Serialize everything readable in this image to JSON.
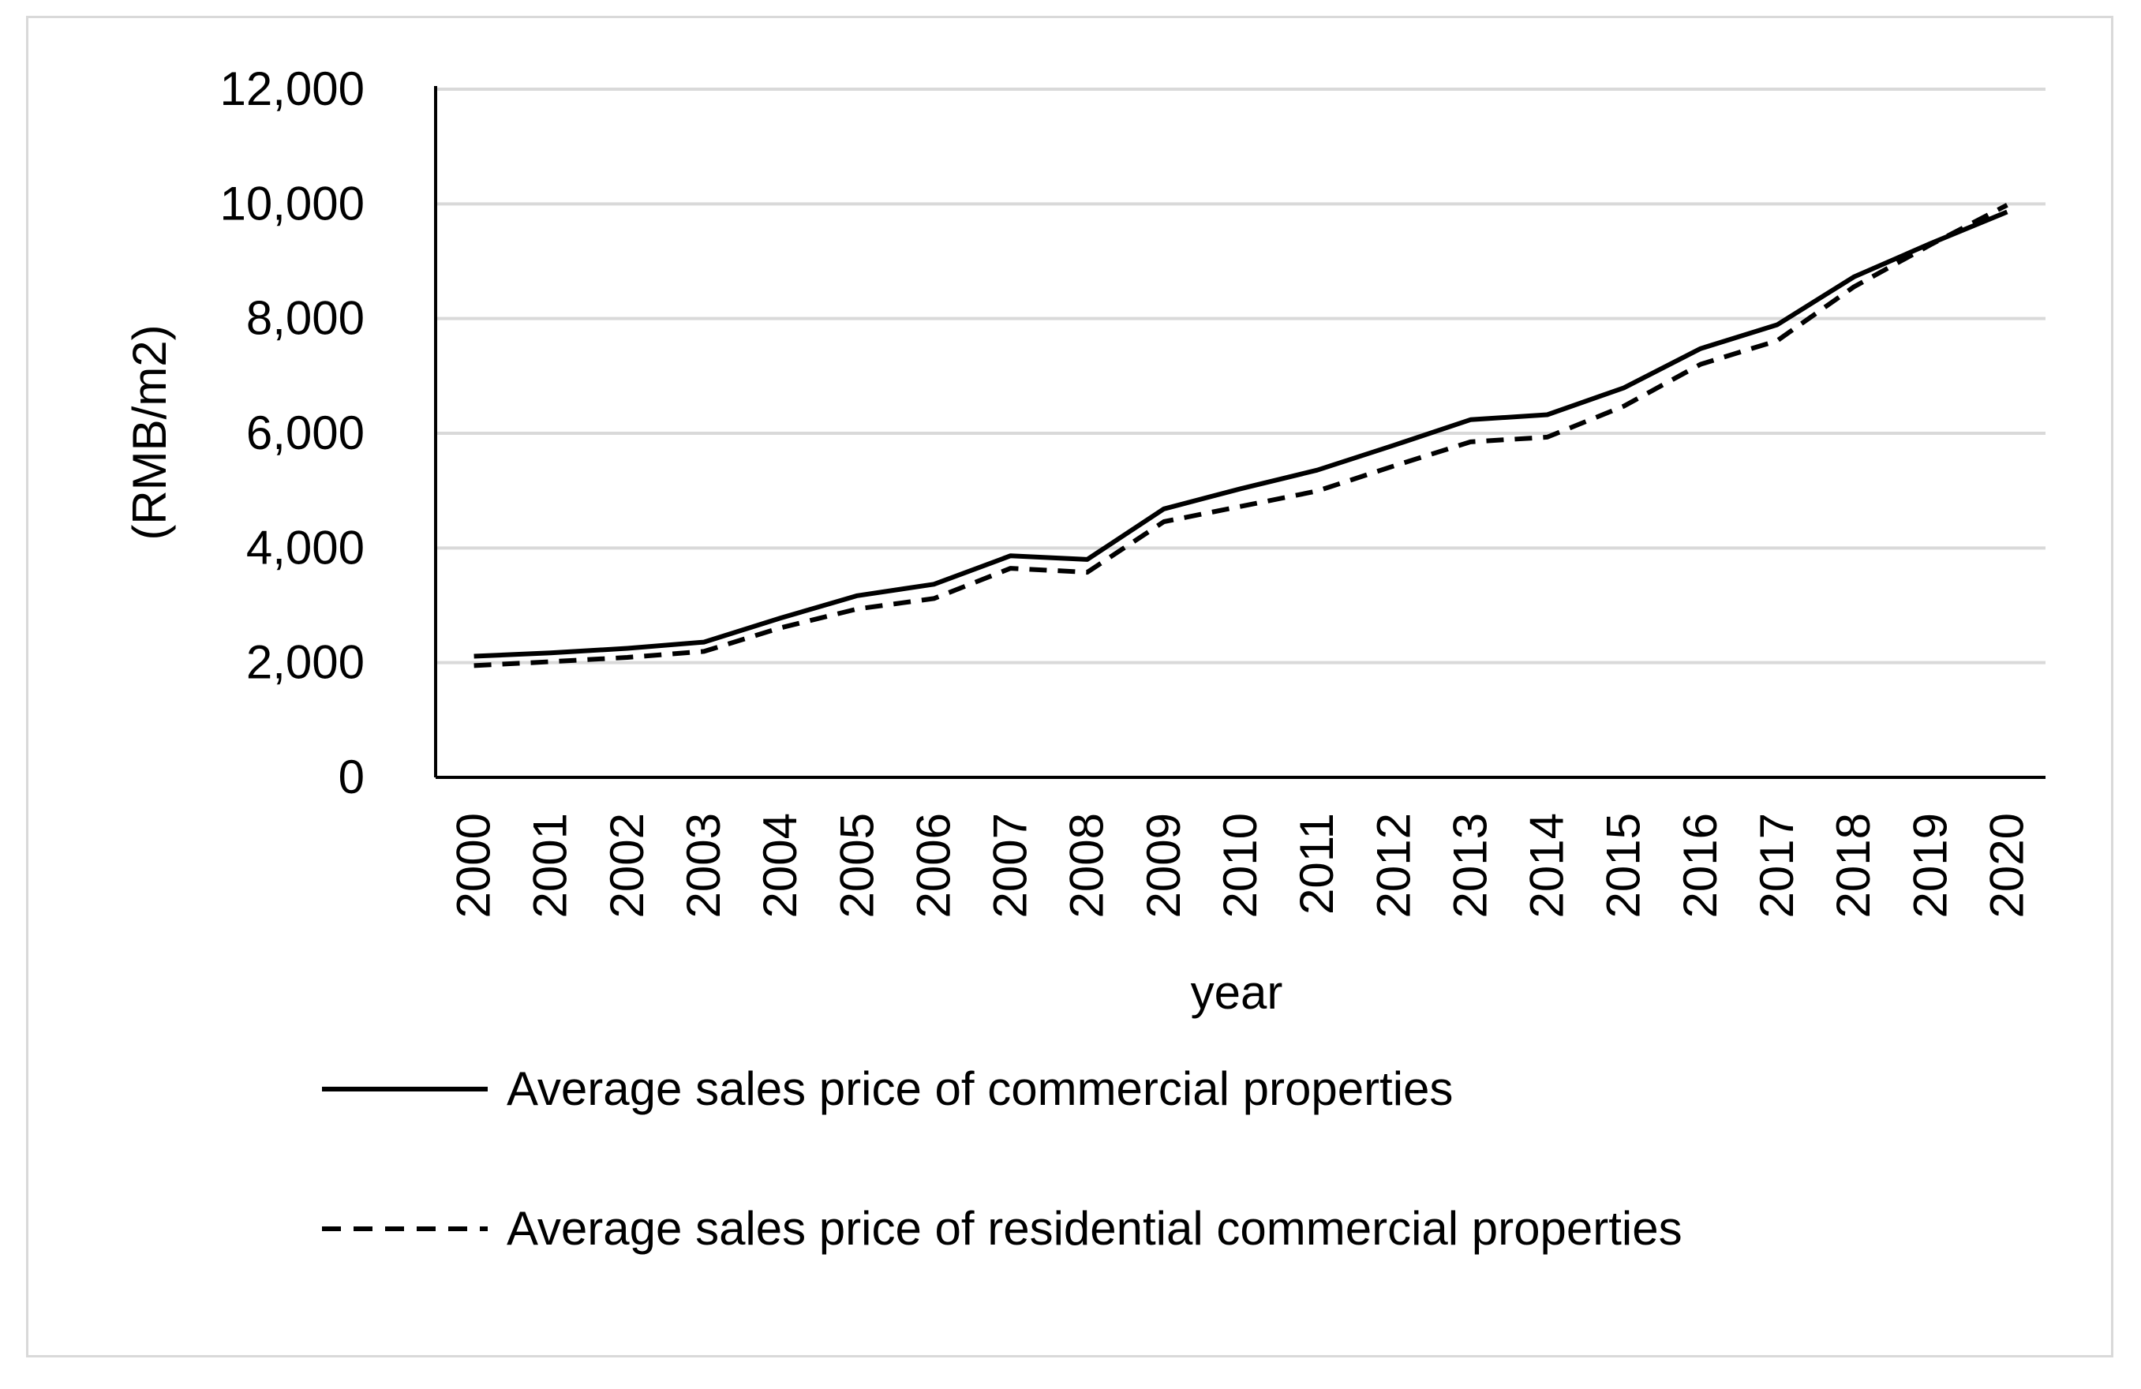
{
  "chart_data": {
    "type": "line",
    "title": "",
    "xlabel": "year",
    "ylabel": "(RMB/m2)",
    "ylim": [
      0,
      12000
    ],
    "yticks": [
      0,
      2000,
      4000,
      6000,
      8000,
      10000,
      12000
    ],
    "ytick_labels": [
      "0",
      "2,000",
      "4,000",
      "6,000",
      "8,000",
      "10,000",
      "12,000"
    ],
    "grid": true,
    "legend_position": "bottom",
    "x": [
      "2000",
      "2001",
      "2002",
      "2003",
      "2004",
      "2005",
      "2006",
      "2007",
      "2008",
      "2009",
      "2010",
      "2011",
      "2012",
      "2013",
      "2014",
      "2015",
      "2016",
      "2017",
      "2018",
      "2019",
      "2020"
    ],
    "series": [
      {
        "name": "Average sales price of commercial properties",
        "style": "solid",
        "values": [
          2112,
          2170,
          2250,
          2359,
          2778,
          3168,
          3367,
          3864,
          3800,
          4681,
          5032,
          5357,
          5791,
          6237,
          6324,
          6793,
          7476,
          7892,
          8726,
          9310,
          9860
        ]
      },
      {
        "name": "Average sales price of residential commercial properties",
        "style": "dashed",
        "values": [
          1948,
          2017,
          2092,
          2197,
          2608,
          2937,
          3119,
          3645,
          3576,
          4459,
          4725,
          4993,
          5430,
          5850,
          5933,
          6473,
          7203,
          7614,
          8553,
          9287,
          9980
        ]
      }
    ]
  }
}
